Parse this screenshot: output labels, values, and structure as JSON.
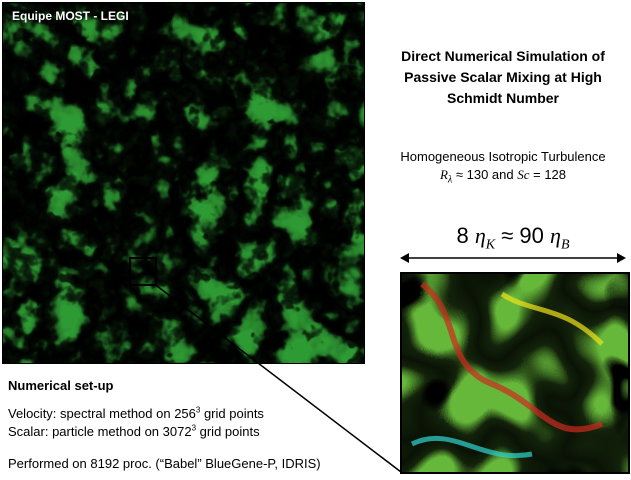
{
  "field": {
    "label": "Equipe MOST - LEGI"
  },
  "title": {
    "line1": "Direct Numerical Simulation of",
    "line2": "Passive Scalar Mixing at High",
    "line3": "Schmidt Number"
  },
  "subtitle": {
    "line1": "Homogeneous Isotropic Turbulence",
    "r_symbol": "R",
    "r_subscript": "λ",
    "r_value": " ≈ 130 and ",
    "sc_symbol": "Sc",
    "sc_value": " = 128"
  },
  "scale": {
    "left_num": "8 ",
    "eta_k": "η",
    "eta_k_sub": "K",
    "approx": " ≈ 90 ",
    "eta_b": "η",
    "eta_b_sub": "B"
  },
  "setup": {
    "heading": "Numerical set-up",
    "velocity_prefix": "Velocity: spectral method on 256",
    "velocity_exp": "3",
    "velocity_suffix": " grid points",
    "scalar_prefix": "Scalar: particle method on 3072",
    "scalar_exp": "3",
    "scalar_suffix": " grid points",
    "performed": "Performed on 8192 proc. (“Babel” BlueGene-P, IDRIS)"
  },
  "colors": {
    "background": "#ffffff",
    "field_green": "#2e9a33",
    "field_yellow": "#f2e21a",
    "field_orange": "#ef7a12",
    "field_red": "#c9221a",
    "field_cyan": "#2fd6d0",
    "field_blue": "#1a3fc4",
    "zoom_green": "#66b83a",
    "zoom_orange": "#f0771a",
    "zoom_red": "#cc2b1e",
    "zoom_blue": "#2a5fd8"
  }
}
